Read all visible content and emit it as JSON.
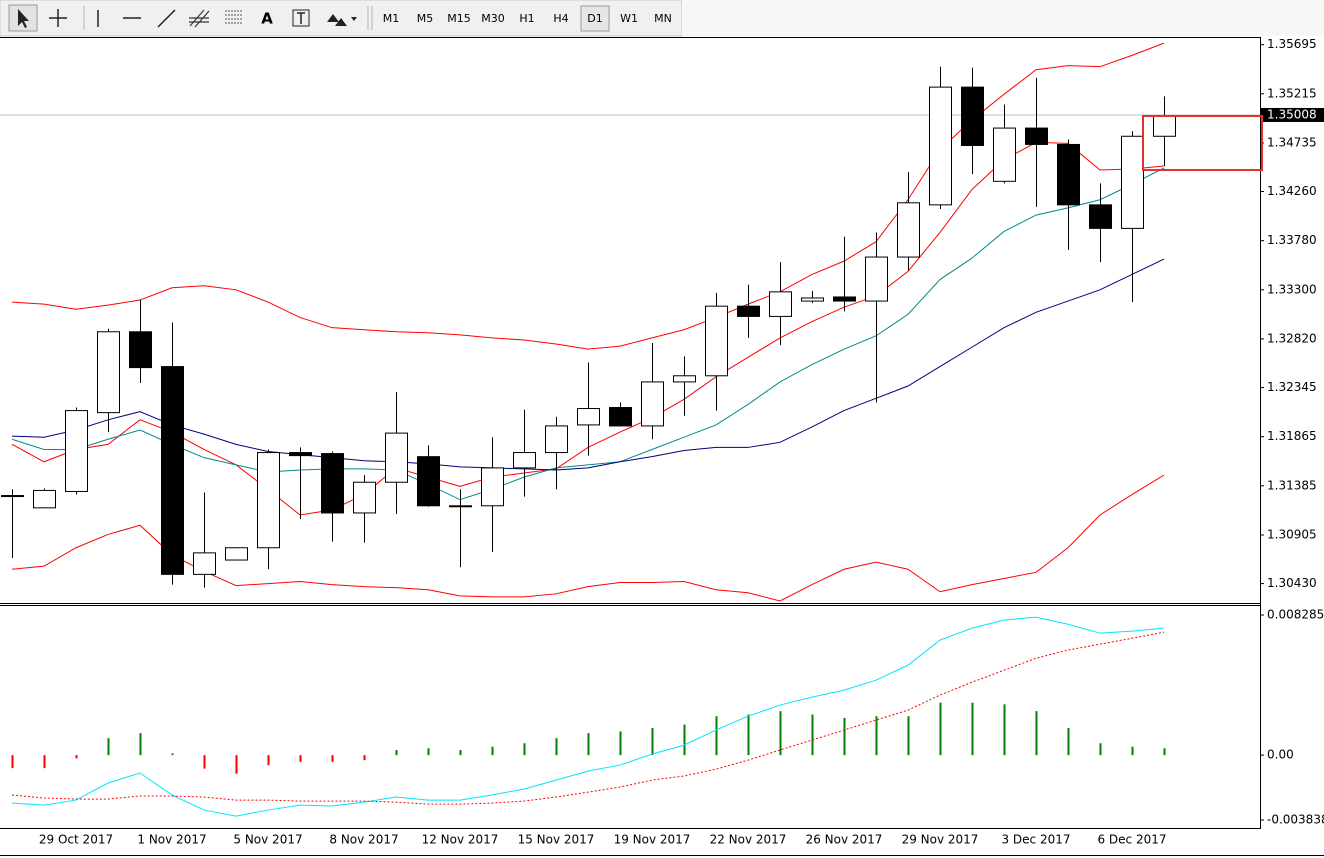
{
  "toolbar": {
    "tools": [
      "A"
    ],
    "timeframes": [
      "M1",
      "M5",
      "M15",
      "M30",
      "H1",
      "H4",
      "D1",
      "W1",
      "MN"
    ],
    "active_timeframe": "D1"
  },
  "chart_data": [
    {
      "type": "candlestick",
      "categories": [
        null,
        null,
        "29 Oct 2017",
        null,
        null,
        "1 Nov 2017",
        null,
        null,
        "5 Nov 2017",
        null,
        null,
        "8 Nov 2017",
        null,
        null,
        "12 Nov 2017",
        null,
        null,
        "15 Nov 2017",
        null,
        null,
        "19 Nov 2017",
        null,
        null,
        "22 Nov 2017",
        null,
        null,
        "26 Nov 2017",
        null,
        null,
        "29 Nov 2017",
        null,
        null,
        "3 Dec 2017",
        null,
        null,
        "6 Dec 2017",
        null
      ],
      "open": [
        1.3129,
        1.3117,
        1.3133,
        1.321,
        1.3289,
        1.3255,
        1.3052,
        1.3066,
        1.3078,
        1.3171,
        1.317,
        1.3112,
        1.3142,
        1.3167,
        1.3119,
        1.3119,
        1.3156,
        1.3171,
        1.3198,
        1.3215,
        1.3197,
        1.324,
        1.3246,
        1.3314,
        1.3304,
        1.3319,
        1.3323,
        1.3319,
        1.3362,
        1.3413,
        1.3528,
        1.3436,
        1.3488,
        1.3472,
        1.3413,
        1.339,
        1.348
      ],
      "high": [
        1.3135,
        1.3136,
        1.3215,
        1.3292,
        1.332,
        1.3298,
        1.3132,
        1.3078,
        1.3174,
        1.3176,
        1.3172,
        1.3149,
        1.323,
        1.3178,
        1.3135,
        1.3186,
        1.3213,
        1.3206,
        1.3259,
        1.322,
        1.3278,
        1.3265,
        1.3327,
        1.3335,
        1.3357,
        1.3329,
        1.3382,
        1.3386,
        1.3445,
        1.3548,
        1.3547,
        1.3511,
        1.3537,
        1.3477,
        1.3434,
        1.3485,
        1.3519
      ],
      "low": [
        1.3068,
        1.3117,
        1.313,
        1.3191,
        1.3239,
        1.3042,
        1.3039,
        1.3066,
        1.3057,
        1.3106,
        1.3084,
        1.3083,
        1.3111,
        1.3118,
        1.3059,
        1.3074,
        1.3128,
        1.3135,
        1.3168,
        1.3197,
        1.3184,
        1.3207,
        1.3212,
        1.3283,
        1.3276,
        1.3317,
        1.3309,
        1.322,
        1.3349,
        1.3409,
        1.3443,
        1.3434,
        1.3411,
        1.3369,
        1.3357,
        1.3318,
        1.3451
      ],
      "close": [
        1.3129,
        1.3134,
        1.3212,
        1.3289,
        1.3254,
        1.3052,
        1.3073,
        1.3078,
        1.3171,
        1.3168,
        1.3112,
        1.3142,
        1.319,
        1.3119,
        1.3119,
        1.3156,
        1.3171,
        1.3197,
        1.3214,
        1.3197,
        1.324,
        1.3246,
        1.3314,
        1.3304,
        1.3328,
        1.3322,
        1.3319,
        1.3362,
        1.3415,
        1.3528,
        1.3471,
        1.3488,
        1.3472,
        1.3413,
        1.339,
        1.348,
        1.35
      ],
      "up_color": "#ffffff",
      "down_color": "#000000",
      "series": [
        {
          "color": "#ff0000",
          "values": [
            1.3318,
            1.3316,
            1.3311,
            1.3315,
            1.332,
            1.3332,
            1.3334,
            1.333,
            1.3318,
            1.3303,
            1.3293,
            1.3291,
            1.3289,
            1.3288,
            1.3286,
            1.3283,
            1.3281,
            1.3277,
            1.3272,
            1.3275,
            1.3283,
            1.3291,
            1.3303,
            1.3316,
            1.3328,
            1.3345,
            1.3358,
            1.3377,
            1.3418,
            1.3467,
            1.3496,
            1.3521,
            1.3545,
            1.3549,
            1.3548,
            1.3559,
            1.3571
          ]
        },
        {
          "color": "#ff0000",
          "values": [
            1.3057,
            1.306,
            1.3078,
            1.3091,
            1.31,
            1.3071,
            1.3055,
            1.3041,
            1.3043,
            1.3045,
            1.3042,
            1.304,
            1.3039,
            1.3037,
            1.3031,
            1.303,
            1.303,
            1.3033,
            1.304,
            1.3044,
            1.3044,
            1.3045,
            1.3037,
            1.3034,
            1.3026,
            1.3042,
            1.3057,
            1.3064,
            1.3057,
            1.3035,
            1.3042,
            1.3048,
            1.3054,
            1.3078,
            1.311,
            1.313,
            1.3149
          ]
        },
        {
          "color": "#ff0000",
          "values": [
            1.3179,
            1.3162,
            1.3174,
            1.3179,
            1.3203,
            1.3191,
            1.3174,
            1.3159,
            1.3135,
            1.311,
            1.3115,
            1.313,
            1.3156,
            1.3147,
            1.3138,
            1.3147,
            1.3151,
            1.3155,
            1.3176,
            1.3191,
            1.3205,
            1.3223,
            1.3245,
            1.3264,
            1.3283,
            1.3299,
            1.3313,
            1.3324,
            1.3348,
            1.3386,
            1.3428,
            1.3457,
            1.3474,
            1.3473,
            1.3447,
            1.3448,
            1.3451
          ]
        },
        {
          "color": "#008b8b",
          "values": [
            1.3184,
            1.3174,
            1.3174,
            1.3184,
            1.3193,
            1.3179,
            1.3166,
            1.3159,
            1.3152,
            1.3154,
            1.3155,
            1.3155,
            1.3154,
            1.314,
            1.3125,
            1.3135,
            1.3147,
            1.3156,
            1.3159,
            1.3162,
            1.3174,
            1.3186,
            1.3198,
            1.3218,
            1.324,
            1.3257,
            1.3272,
            1.3285,
            1.3306,
            1.334,
            1.3361,
            1.3387,
            1.3403,
            1.341,
            1.3418,
            1.3433,
            1.3449
          ]
        },
        {
          "color": "#000080",
          "values": [
            1.3187,
            1.3186,
            1.3193,
            1.3203,
            1.3211,
            1.3198,
            1.3189,
            1.3179,
            1.3172,
            1.3169,
            1.3166,
            1.3163,
            1.3162,
            1.316,
            1.3157,
            1.3156,
            1.3155,
            1.3154,
            1.3156,
            1.3162,
            1.3167,
            1.3173,
            1.3176,
            1.3176,
            1.3181,
            1.3196,
            1.3212,
            1.3224,
            1.3236,
            1.3255,
            1.3274,
            1.3293,
            1.3308,
            1.3319,
            1.333,
            1.3345,
            1.336
          ]
        }
      ],
      "current_price": 1.35008,
      "ylim": [
        1.3025,
        1.3576
      ],
      "yticks": [
        1.35695,
        1.35215,
        1.34735,
        {
          "value": 1.3426,
          "label": "1.34260"
        },
        {
          "value": 1.3378,
          "label": "1.33780"
        },
        {
          "value": 1.333,
          "label": "1.33300"
        },
        {
          "value": 1.3282,
          "label": "1.32820"
        },
        1.32345,
        1.31865,
        1.31385,
        1.30905,
        {
          "value": 1.3043,
          "label": "1.30430"
        }
      ]
    },
    {
      "type": "macd",
      "histogram": {
        "values": [
          -0.00077,
          -0.00077,
          -0.0002,
          0.001,
          0.0013,
          0.0001,
          -0.0008,
          -0.0011,
          -0.0006,
          -0.0004,
          -0.0004,
          -0.0003,
          0.0003,
          0.0004,
          0.0003,
          0.0005,
          0.0007,
          0.001,
          0.0013,
          0.0014,
          0.0016,
          0.0018,
          0.0023,
          0.0024,
          0.0026,
          0.0024,
          0.0022,
          0.0023,
          0.0023,
          0.0031,
          0.0031,
          0.003,
          0.0026,
          0.0016,
          0.0007,
          0.0005,
          0.0004
        ],
        "positive_color": "#008000",
        "negative_color": "#ff0000"
      },
      "series": [
        {
          "color": "#00e5ff",
          "dashed": false,
          "values": [
            -0.00284,
            -0.00296,
            -0.00266,
            -0.00165,
            -0.00106,
            -0.00236,
            -0.00325,
            -0.00361,
            -0.00325,
            -0.00296,
            -0.00301,
            -0.00278,
            -0.00248,
            -0.00266,
            -0.00266,
            -0.00236,
            -0.00201,
            -0.00148,
            -0.00095,
            -0.00059,
            6e-05,
            0.00059,
            0.00148,
            0.0023,
            0.00296,
            0.00343,
            0.00384,
            0.00443,
            0.00532,
            0.0068,
            0.00751,
            0.00798,
            0.00816,
            0.00774,
            0.00721,
            0.00733,
            0.00751
          ]
        },
        {
          "color": "#ff0000",
          "dashed": true,
          "values": [
            -0.00236,
            -0.00254,
            -0.0026,
            -0.0026,
            -0.00242,
            -0.00242,
            -0.00248,
            -0.00266,
            -0.00266,
            -0.00272,
            -0.00272,
            -0.00272,
            -0.00278,
            -0.0029,
            -0.0029,
            -0.00284,
            -0.00272,
            -0.00248,
            -0.00219,
            -0.00189,
            -0.00148,
            -0.00124,
            -0.00083,
            -0.0003,
            0.0003,
            0.00089,
            0.00148,
            0.00207,
            0.00266,
            0.00355,
            0.00431,
            0.00502,
            0.00573,
            0.00621,
            0.00656,
            0.00691,
            0.00727
          ]
        }
      ],
      "ylim": [
        -0.004311,
        0.008817
      ],
      "yticks": [
        0.008285,
        {
          "value": 0,
          "label": "0.00"
        },
        -0.003838
      ]
    }
  ]
}
